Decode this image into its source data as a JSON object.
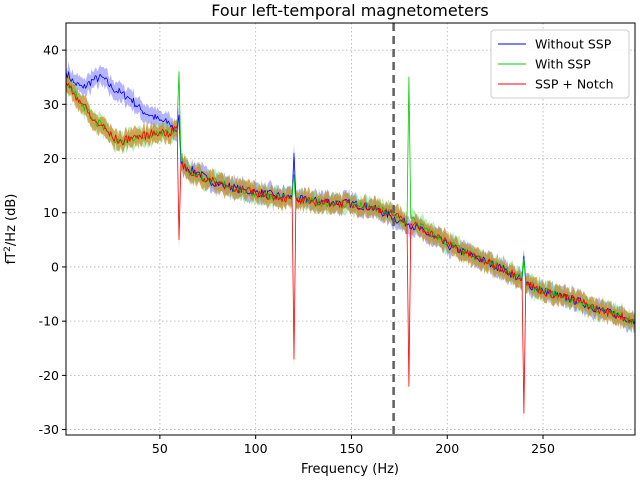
{
  "chart_data": {
    "type": "line",
    "title": "Four left-temporal magnetometers",
    "xlabel": "Frequency (Hz)",
    "ylabel_main": "fT",
    "ylabel_sup": "2",
    "ylabel_rest": "/Hz (dB)",
    "xlim": [
      1,
      298
    ],
    "ylim": [
      -31,
      45
    ],
    "xticks": [
      50,
      100,
      150,
      200,
      250
    ],
    "yticks": [
      -30,
      -20,
      -10,
      0,
      10,
      20,
      30,
      40
    ],
    "grid": true,
    "legend_position": "top-right",
    "vline": {
      "x": 172,
      "style": "dashed",
      "color": "#606060"
    },
    "series": [
      {
        "name": "Without SSP",
        "color": "#0000ff",
        "band_color": "#5a5aff",
        "x": [
          1,
          5,
          10,
          15,
          20,
          25,
          30,
          35,
          40,
          45,
          50,
          55,
          59,
          60,
          61,
          65,
          70,
          75,
          80,
          85,
          90,
          95,
          100,
          110,
          119,
          120,
          121,
          130,
          140,
          150,
          160,
          170,
          175,
          180,
          190,
          200,
          210,
          220,
          230,
          239,
          240,
          241,
          250,
          260,
          270,
          280,
          290,
          298
        ],
        "y": [
          36,
          34,
          33,
          34.5,
          35,
          33,
          32,
          31,
          29,
          28,
          27,
          26.5,
          25,
          28,
          19,
          18,
          17.5,
          16,
          15.5,
          15,
          14.5,
          14,
          13.8,
          13.2,
          12.8,
          21,
          12.5,
          12.2,
          12,
          11.7,
          11,
          9.5,
          8.5,
          8,
          6,
          4,
          2.5,
          1,
          -0.5,
          -2.5,
          2,
          -3,
          -4.5,
          -5.5,
          -6.5,
          -8,
          -9,
          -10
        ]
      },
      {
        "name": "With SSP",
        "color": "#00cc00",
        "band_color": "#66dd66",
        "x": [
          1,
          5,
          10,
          15,
          20,
          25,
          30,
          35,
          40,
          45,
          50,
          55,
          59,
          60,
          61,
          65,
          70,
          75,
          80,
          85,
          90,
          95,
          100,
          110,
          119,
          120,
          121,
          130,
          140,
          150,
          160,
          170,
          175,
          179,
          180,
          181,
          190,
          200,
          210,
          220,
          230,
          239,
          240,
          241,
          250,
          260,
          270,
          280,
          290,
          298
        ],
        "y": [
          34,
          32,
          30,
          27,
          26,
          24,
          23,
          24,
          24,
          24.5,
          25,
          24.5,
          26,
          36,
          20,
          17.5,
          17,
          16,
          15.5,
          15,
          14.5,
          14,
          13.6,
          13,
          12.5,
          17,
          12.2,
          12,
          11.8,
          11.5,
          11,
          10,
          9,
          8,
          35,
          9,
          6.5,
          4.5,
          2.5,
          1,
          -0.5,
          -2,
          1.5,
          -3,
          -4.5,
          -5.5,
          -6.5,
          -8,
          -9,
          -10
        ]
      },
      {
        "name": "SSP + Notch",
        "color": "#ff0000",
        "band_color": "#c89032",
        "x": [
          1,
          5,
          10,
          15,
          20,
          25,
          30,
          35,
          40,
          45,
          50,
          55,
          59,
          60,
          61,
          65,
          70,
          75,
          80,
          85,
          90,
          95,
          100,
          110,
          119,
          120,
          121,
          130,
          140,
          150,
          160,
          170,
          175,
          179,
          180,
          181,
          190,
          200,
          210,
          220,
          230,
          239,
          240,
          241,
          250,
          260,
          270,
          280,
          290,
          298
        ],
        "y": [
          34,
          32,
          30,
          27,
          26,
          24,
          23,
          24,
          24,
          24.5,
          25,
          24.5,
          26,
          5,
          19,
          17.5,
          17,
          16,
          15.5,
          15,
          14.5,
          14,
          13.6,
          13,
          12.5,
          -17,
          12.2,
          12,
          11.8,
          11.5,
          11,
          10,
          9,
          8,
          -22,
          8,
          6.5,
          4.5,
          2.5,
          1,
          -0.5,
          -2,
          -27,
          -3,
          -4.5,
          -5.5,
          -6.5,
          -8,
          -9,
          -10
        ]
      }
    ]
  }
}
